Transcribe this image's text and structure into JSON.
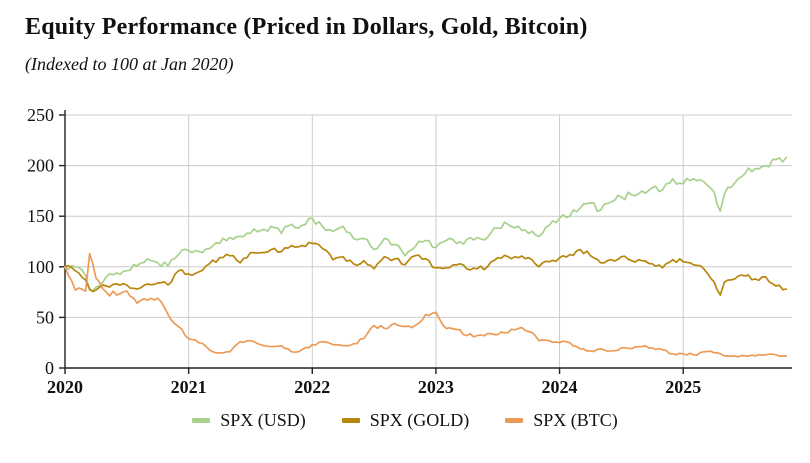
{
  "chart_data": {
    "type": "line",
    "title": "Equity Performance (Priced in Dollars, Gold, Bitcoin)",
    "subtitle": "(Indexed to 100 at Jan 2020)",
    "xlabel": "",
    "ylabel": "",
    "xlim": [
      2020,
      2025.88
    ],
    "ylim": [
      0,
      250
    ],
    "xticks": [
      2020,
      2021,
      2022,
      2023,
      2024,
      2025
    ],
    "yticks": [
      0,
      50,
      100,
      150,
      200,
      250
    ],
    "grid": true,
    "grid_color": "#cccccc",
    "axis_color": "#222222",
    "background": "#ffffff",
    "legend_position": "bottom",
    "x": [
      2020.0,
      2020.083,
      2020.167,
      2020.2,
      2020.25,
      2020.333,
      2020.417,
      2020.5,
      2020.583,
      2020.667,
      2020.75,
      2020.833,
      2020.917,
      2021.0,
      2021.083,
      2021.167,
      2021.25,
      2021.333,
      2021.417,
      2021.5,
      2021.583,
      2021.667,
      2021.75,
      2021.833,
      2021.917,
      2022.0,
      2022.083,
      2022.167,
      2022.25,
      2022.333,
      2022.417,
      2022.5,
      2022.583,
      2022.667,
      2022.75,
      2022.833,
      2022.917,
      2023.0,
      2023.083,
      2023.167,
      2023.25,
      2023.333,
      2023.417,
      2023.5,
      2023.583,
      2023.667,
      2023.75,
      2023.833,
      2023.917,
      2024.0,
      2024.083,
      2024.167,
      2024.25,
      2024.333,
      2024.417,
      2024.5,
      2024.583,
      2024.667,
      2024.75,
      2024.833,
      2024.917,
      2025.0,
      2025.083,
      2025.167,
      2025.25,
      2025.3,
      2025.333,
      2025.417,
      2025.5,
      2025.583,
      2025.667,
      2025.75,
      2025.833
    ],
    "series": [
      {
        "name": "SPX (USD)",
        "color": "#a9d18e",
        "values": [
          100,
          100,
          91,
          77,
          80,
          90,
          94,
          96,
          101,
          108,
          104,
          101,
          112,
          116,
          115,
          118,
          123,
          129,
          130,
          133,
          136,
          140,
          133,
          142,
          141,
          148,
          140,
          135,
          140,
          128,
          128,
          117,
          128,
          122,
          111,
          120,
          126,
          119,
          126,
          123,
          127,
          129,
          129,
          138,
          142,
          140,
          133,
          130,
          141,
          148,
          150,
          158,
          163,
          156,
          164,
          169,
          171,
          175,
          178,
          176,
          187,
          182,
          187,
          184,
          174,
          155,
          172,
          183,
          192,
          197,
          200,
          206,
          208
        ]
      },
      {
        "name": "SPX (GOLD)",
        "color": "#b8860b",
        "values": [
          100,
          96,
          87,
          78,
          77,
          81,
          83,
          82,
          78,
          83,
          84,
          82,
          96,
          93,
          95,
          103,
          109,
          111,
          104,
          114,
          114,
          117,
          115,
          121,
          121,
          123,
          118,
          107,
          110,
          103,
          106,
          98,
          110,
          108,
          102,
          111,
          108,
          99,
          99,
          102,
          98,
          98,
          100,
          109,
          110,
          109,
          109,
          100,
          105,
          109,
          112,
          117,
          111,
          104,
          107,
          110,
          106,
          106,
          103,
          99,
          107,
          105,
          102,
          98,
          85,
          72,
          85,
          88,
          91,
          88,
          90,
          81,
          78
        ]
      },
      {
        "name": "SPX (BTC)",
        "color": "#ec9b57",
        "values": [
          100,
          77,
          76,
          113,
          89,
          75,
          72,
          76,
          64,
          67,
          69,
          53,
          41,
          29,
          25,
          18,
          15,
          16,
          26,
          27,
          23,
          21,
          22,
          16,
          18,
          23,
          26,
          23,
          22,
          24,
          29,
          42,
          39,
          44,
          41,
          42,
          53,
          55,
          39,
          38,
          32,
          32,
          34,
          33,
          35,
          39,
          36,
          27,
          27,
          25,
          25,
          19,
          17,
          19,
          17,
          20,
          19,
          21,
          20,
          18,
          14,
          14,
          13,
          16,
          15,
          14,
          12,
          12,
          12,
          12,
          13,
          13,
          12
        ]
      }
    ]
  }
}
